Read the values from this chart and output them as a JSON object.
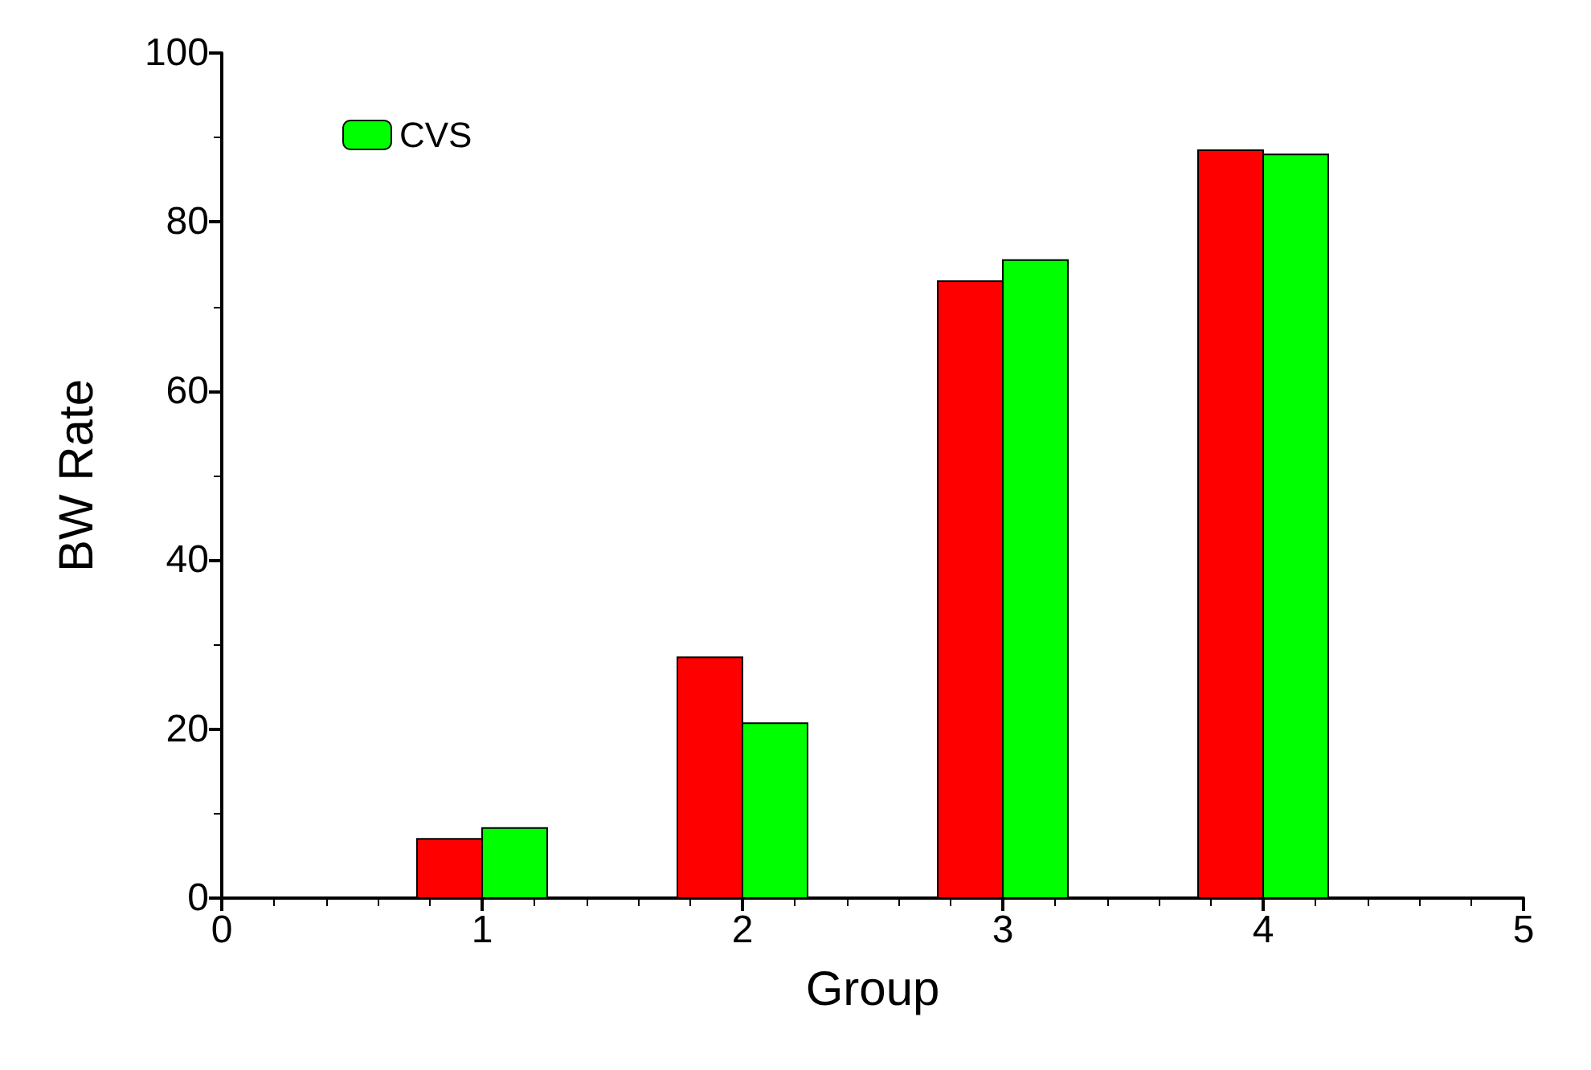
{
  "chart_data": {
    "type": "bar",
    "xlabel": "Group",
    "ylabel": "BW Rate",
    "x": [
      1,
      2,
      3,
      4
    ],
    "xlim": [
      0,
      5
    ],
    "xticks": [
      0,
      1,
      2,
      3,
      4,
      5
    ],
    "ylim": [
      0,
      100
    ],
    "yticks": [
      0,
      20,
      40,
      60,
      80,
      100
    ],
    "grid": false,
    "legend": "top left",
    "series": [
      {
        "color": "#ff0000",
        "values": [
          7,
          28.5,
          73,
          88.5
        ]
      },
      {
        "name": "CVS",
        "color": "#00ff00",
        "values": [
          8.3,
          20.7,
          75.5,
          88
        ]
      }
    ]
  }
}
